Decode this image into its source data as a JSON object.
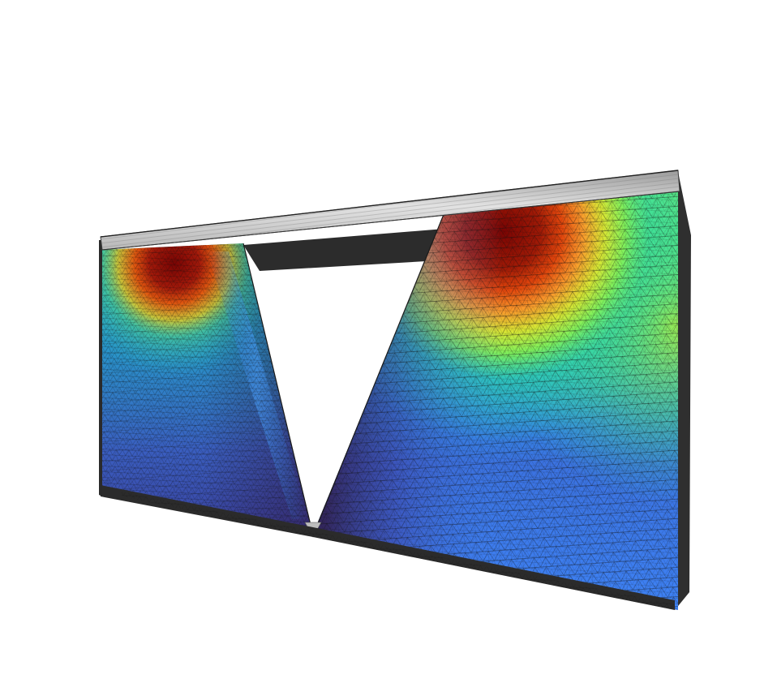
{
  "scene": {
    "background_color": "#ffffff",
    "colormap": [
      "#30123b",
      "#4145ab",
      "#3e83f6",
      "#1ebde0",
      "#2ff49e",
      "#a4fc3c",
      "#efcd3a",
      "#fb8022",
      "#d23105",
      "#7a0403"
    ],
    "mesh_edge_color": "#1a1a1a",
    "side_face_color": "#2f2f2f",
    "top_plate_color": "#d6d6d6"
  }
}
